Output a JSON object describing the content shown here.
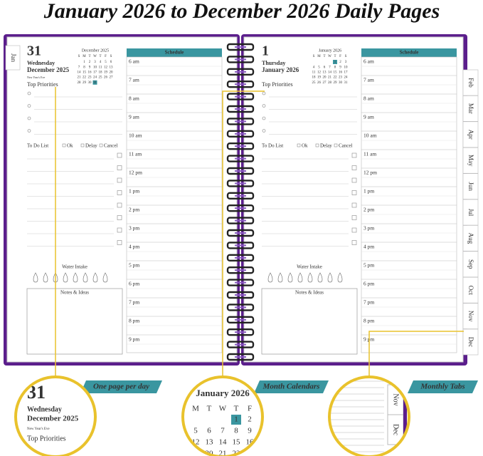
{
  "title": "January 2026 to December 2026 Daily Pages",
  "tabs": [
    "Jan",
    "Feb",
    "Mar",
    "Apr",
    "May",
    "Jun",
    "Jul",
    "Aug",
    "Sep",
    "Oct",
    "Nov",
    "Dec"
  ],
  "pages": [
    {
      "day": "31",
      "weekday": "Wednesday",
      "date": "December 2025",
      "holiday": "New Year's Eve",
      "calendar": {
        "title": "December 2025",
        "weekdays": [
          "S",
          "M",
          "T",
          "W",
          "T",
          "F",
          "S"
        ],
        "weeks": [
          [
            null,
            1,
            2,
            3,
            4,
            5,
            6
          ],
          [
            7,
            8,
            9,
            10,
            11,
            12,
            13
          ],
          [
            14,
            15,
            16,
            17,
            18,
            19,
            20
          ],
          [
            21,
            22,
            23,
            24,
            25,
            26,
            27
          ],
          [
            28,
            29,
            30,
            31,
            null,
            null,
            null
          ]
        ]
      },
      "priorities_label": "Top Priorities",
      "todo_label": "To Do List",
      "statuses": [
        "Ok",
        "Delay",
        "Cancel"
      ],
      "water_label": "Water Intake",
      "notes_label": "Notes & Ideas",
      "schedule_label": "Schedule",
      "times": [
        "6 am",
        "7 am",
        "8 am",
        "9 am",
        "10 am",
        "11 am",
        "12 pm",
        "1 pm",
        "2 pm",
        "3 pm",
        "4 pm",
        "5 pm",
        "6 pm",
        "7 pm",
        "8 pm",
        "9 pm"
      ]
    },
    {
      "day": "1",
      "weekday": "Thursday",
      "date": "January 2026",
      "calendar": {
        "title": "January 2026",
        "weekdays": [
          "S",
          "M",
          "T",
          "W",
          "T",
          "F",
          "S"
        ],
        "weeks": [
          [
            null,
            null,
            null,
            null,
            1,
            2,
            3
          ],
          [
            4,
            5,
            6,
            7,
            8,
            9,
            10
          ],
          [
            11,
            12,
            13,
            14,
            15,
            16,
            17
          ],
          [
            18,
            19,
            20,
            21,
            22,
            23,
            24
          ],
          [
            25,
            26,
            27,
            28,
            29,
            30,
            31
          ]
        ]
      },
      "priorities_label": "Top Priorities",
      "todo_label": "To Do List",
      "statuses": [
        "Ok",
        "Delay",
        "Cancel"
      ],
      "water_label": "Water Intake",
      "notes_label": "Notes & Ideas",
      "schedule_label": "Schedule",
      "times": [
        "6 am",
        "7 am",
        "8 am",
        "9 am",
        "10 am",
        "11 am",
        "12 pm",
        "1 pm",
        "2 pm",
        "3 pm",
        "4 pm",
        "5 pm",
        "6 pm",
        "7 pm",
        "8 pm",
        "9 pm"
      ]
    }
  ],
  "callouts": [
    "One page per day",
    "Month Calendars",
    "Monthly Tabs"
  ]
}
